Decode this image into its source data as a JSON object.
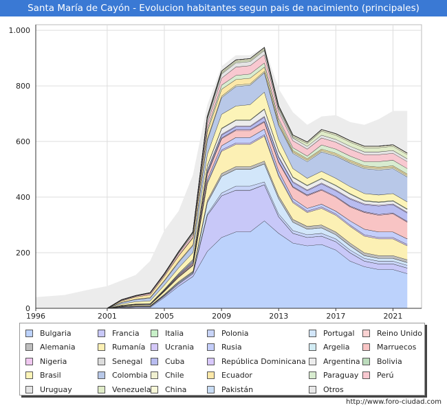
{
  "title": "Santa María de Cayón - Evolucion habitantes segun pais de nacimiento (principales)",
  "footer": "http://www.foro-ciudad.com",
  "chart_data": {
    "type": "area",
    "stacked": true,
    "x": [
      1996,
      1998,
      2000,
      2001,
      2002,
      2003,
      2004,
      2005,
      2006,
      2007,
      2008,
      2009,
      2010,
      2011,
      2012,
      2013,
      2014,
      2015,
      2016,
      2017,
      2018,
      2019,
      2020,
      2021,
      2022
    ],
    "x_ticks": [
      1996,
      2001,
      2005,
      2009,
      2013,
      2017,
      2021
    ],
    "y_ticks": [
      0,
      200,
      400,
      600,
      800,
      1000
    ],
    "y_tick_labels": [
      "0",
      "200",
      "400",
      "600",
      "800",
      "1.000"
    ],
    "ylim": [
      0,
      1020
    ],
    "xlim": [
      1996,
      2023
    ],
    "grid": true,
    "total": [
      40,
      48,
      70,
      80,
      100,
      120,
      170,
      280,
      350,
      480,
      730,
      870,
      910,
      910,
      940,
      790,
      705,
      660,
      690,
      695,
      670,
      660,
      680,
      710,
      710
    ],
    "series": [
      {
        "name": "Bulgaria",
        "color": "#bcd2fc",
        "values": [
          null,
          null,
          null,
          0,
          2,
          3,
          3,
          40,
          80,
          115,
          205,
          255,
          275,
          275,
          315,
          270,
          235,
          225,
          230,
          210,
          170,
          150,
          140,
          140,
          125
        ]
      },
      {
        "name": "Francia",
        "color": "#c8c8f8",
        "values": [
          null,
          null,
          null,
          0,
          2,
          3,
          3,
          5,
          8,
          10,
          130,
          150,
          150,
          150,
          130,
          60,
          35,
          30,
          30,
          30,
          30,
          20,
          20,
          20,
          20
        ]
      },
      {
        "name": "Italia",
        "color": "#c8f0c8",
        "values": [
          null,
          null,
          null,
          0,
          0,
          0,
          0,
          0,
          0,
          0,
          0,
          0,
          0,
          0,
          0,
          0,
          0,
          0,
          0,
          0,
          0,
          0,
          0,
          0,
          0
        ]
      },
      {
        "name": "Polonia",
        "color": "#c8d4f8",
        "values": [
          null,
          null,
          null,
          0,
          1,
          1,
          1,
          2,
          3,
          3,
          5,
          10,
          15,
          15,
          10,
          10,
          10,
          10,
          10,
          10,
          10,
          10,
          10,
          10,
          10
        ]
      },
      {
        "name": "Portugal",
        "color": "#d2e6fa",
        "values": [
          null,
          null,
          null,
          0,
          1,
          1,
          1,
          2,
          3,
          3,
          40,
          60,
          60,
          60,
          65,
          55,
          30,
          20,
          20,
          15,
          15,
          10,
          10,
          10,
          10
        ]
      },
      {
        "name": "Reino Unido",
        "color": "#fad2d2",
        "values": [
          null,
          null,
          null,
          0,
          0,
          0,
          0,
          0,
          0,
          0,
          0,
          0,
          0,
          0,
          0,
          0,
          0,
          0,
          0,
          0,
          0,
          0,
          0,
          0,
          0
        ]
      },
      {
        "name": "Alemania",
        "color": "#bebebe",
        "values": [
          null,
          null,
          null,
          0,
          1,
          1,
          1,
          2,
          3,
          3,
          8,
          10,
          10,
          10,
          10,
          10,
          10,
          10,
          10,
          10,
          10,
          10,
          10,
          10,
          10
        ]
      },
      {
        "name": "Rumanía",
        "color": "#fcf0b4",
        "values": [
          null,
          null,
          null,
          0,
          2,
          4,
          4,
          10,
          15,
          20,
          60,
          80,
          80,
          80,
          90,
          70,
          60,
          50,
          60,
          60,
          60,
          60,
          60,
          60,
          50
        ]
      },
      {
        "name": "Ucrania",
        "color": "#d4c8f8",
        "values": [
          null,
          null,
          null,
          0,
          0,
          0,
          0,
          1,
          1,
          2,
          5,
          5,
          5,
          5,
          5,
          5,
          5,
          5,
          5,
          5,
          5,
          5,
          5,
          5,
          5
        ]
      },
      {
        "name": "Rusia",
        "color": "#c4cefa",
        "values": [
          null,
          null,
          null,
          0,
          0,
          0,
          0,
          1,
          1,
          2,
          10,
          15,
          20,
          20,
          20,
          15,
          10,
          10,
          10,
          10,
          15,
          20,
          20,
          20,
          20
        ]
      },
      {
        "name": "Argelia",
        "color": "#d2ecf4",
        "values": [
          null,
          null,
          null,
          0,
          0,
          0,
          0,
          0,
          0,
          0,
          0,
          0,
          0,
          0,
          0,
          0,
          0,
          0,
          0,
          0,
          0,
          0,
          0,
          0,
          0
        ]
      },
      {
        "name": "Marruecos",
        "color": "#f8c4c4",
        "values": [
          null,
          null,
          null,
          0,
          0,
          1,
          1,
          2,
          3,
          5,
          20,
          25,
          25,
          25,
          25,
          30,
          40,
          45,
          50,
          50,
          50,
          60,
          60,
          65,
          60
        ]
      },
      {
        "name": "Nigeria",
        "color": "#f0c8f0",
        "values": [
          null,
          null,
          null,
          0,
          0,
          0,
          0,
          0,
          1,
          1,
          3,
          3,
          3,
          3,
          3,
          3,
          3,
          3,
          3,
          3,
          3,
          3,
          3,
          3,
          3
        ]
      },
      {
        "name": "Senegal",
        "color": "#dcdcdc",
        "values": [
          null,
          null,
          null,
          0,
          0,
          0,
          0,
          0,
          0,
          0,
          0,
          0,
          0,
          0,
          0,
          0,
          0,
          0,
          0,
          0,
          0,
          0,
          0,
          0,
          0
        ]
      },
      {
        "name": "Cuba",
        "color": "#b8bcf0",
        "values": [
          null,
          null,
          null,
          0,
          1,
          1,
          2,
          2,
          3,
          5,
          8,
          10,
          10,
          10,
          15,
          15,
          15,
          15,
          20,
          20,
          25,
          25,
          30,
          30,
          30
        ]
      },
      {
        "name": "República Dominicana",
        "color": "#d8c8fc",
        "values": [
          null,
          null,
          null,
          0,
          0,
          0,
          0,
          0,
          1,
          1,
          3,
          3,
          3,
          3,
          3,
          3,
          3,
          3,
          3,
          3,
          3,
          3,
          3,
          3,
          3
        ]
      },
      {
        "name": "Argentina",
        "color": "#ececec",
        "values": [
          null,
          null,
          null,
          0,
          1,
          1,
          1,
          2,
          3,
          5,
          15,
          20,
          20,
          20,
          25,
          20,
          15,
          15,
          15,
          15,
          15,
          10,
          10,
          10,
          10
        ]
      },
      {
        "name": "Bolivia",
        "color": "#bcdcbc",
        "values": [
          null,
          null,
          null,
          0,
          0,
          0,
          0,
          0,
          1,
          1,
          2,
          2,
          2,
          2,
          2,
          2,
          2,
          2,
          2,
          2,
          2,
          2,
          2,
          2,
          2
        ]
      },
      {
        "name": "Brasil",
        "color": "#fcf4b8",
        "values": [
          null,
          null,
          null,
          0,
          5,
          8,
          10,
          15,
          20,
          25,
          40,
          50,
          50,
          55,
          60,
          40,
          30,
          25,
          25,
          25,
          25,
          25,
          25,
          25,
          25
        ]
      },
      {
        "name": "Colombia",
        "color": "#b8c8e8",
        "values": [
          null,
          null,
          null,
          0,
          5,
          8,
          10,
          15,
          20,
          25,
          50,
          60,
          70,
          70,
          70,
          50,
          55,
          60,
          70,
          80,
          85,
          90,
          90,
          90,
          90
        ]
      },
      {
        "name": "Chile",
        "color": "#f0f0d0",
        "values": [
          null,
          null,
          null,
          0,
          1,
          1,
          2,
          2,
          3,
          3,
          5,
          5,
          5,
          5,
          5,
          5,
          5,
          5,
          5,
          5,
          5,
          5,
          5,
          5,
          5
        ]
      },
      {
        "name": "Ecuador",
        "color": "#fce8a8",
        "values": [
          null,
          null,
          null,
          0,
          5,
          8,
          10,
          15,
          20,
          25,
          25,
          25,
          20,
          20,
          15,
          10,
          5,
          5,
          5,
          5,
          5,
          5,
          5,
          5,
          5
        ]
      },
      {
        "name": "Paraguay",
        "color": "#d8ecd0",
        "values": [
          null,
          null,
          null,
          0,
          0,
          0,
          0,
          0,
          1,
          2,
          10,
          15,
          15,
          15,
          15,
          10,
          10,
          10,
          15,
          15,
          15,
          15,
          20,
          20,
          20
        ]
      },
      {
        "name": "Perú",
        "color": "#f8c8d0",
        "values": [
          null,
          null,
          null,
          0,
          2,
          3,
          5,
          5,
          8,
          10,
          20,
          25,
          30,
          30,
          30,
          25,
          25,
          25,
          25,
          25,
          25,
          25,
          25,
          25,
          25
        ]
      },
      {
        "name": "Uruguay",
        "color": "#e4e4e4",
        "values": [
          null,
          null,
          null,
          0,
          1,
          1,
          1,
          2,
          3,
          5,
          15,
          15,
          15,
          15,
          15,
          10,
          10,
          10,
          10,
          10,
          10,
          10,
          10,
          10,
          10
        ]
      },
      {
        "name": "Venezuela",
        "color": "#e0ecc8",
        "values": [
          null,
          null,
          null,
          0,
          1,
          1,
          1,
          2,
          2,
          3,
          5,
          5,
          5,
          5,
          5,
          5,
          5,
          10,
          15,
          15,
          15,
          15,
          15,
          15,
          15
        ]
      },
      {
        "name": "China",
        "color": "#f8f8d8",
        "values": [
          null,
          null,
          null,
          0,
          0,
          0,
          0,
          0,
          1,
          1,
          5,
          5,
          5,
          5,
          5,
          5,
          5,
          5,
          5,
          5,
          5,
          5,
          5,
          5,
          5
        ]
      },
      {
        "name": "Pakistán",
        "color": "#c8dcf4",
        "values": [
          null,
          null,
          null,
          0,
          0,
          0,
          0,
          0,
          0,
          0,
          0,
          0,
          0,
          0,
          0,
          0,
          0,
          0,
          0,
          0,
          0,
          0,
          0,
          0,
          0
        ]
      },
      {
        "name": "Otros",
        "color": "#e8e8e8",
        "values": [
          null,
          null,
          null,
          0,
          0,
          0,
          0,
          0,
          0,
          0,
          0,
          0,
          0,
          0,
          0,
          0,
          0,
          0,
          0,
          0,
          0,
          0,
          0,
          0,
          0
        ]
      }
    ]
  }
}
